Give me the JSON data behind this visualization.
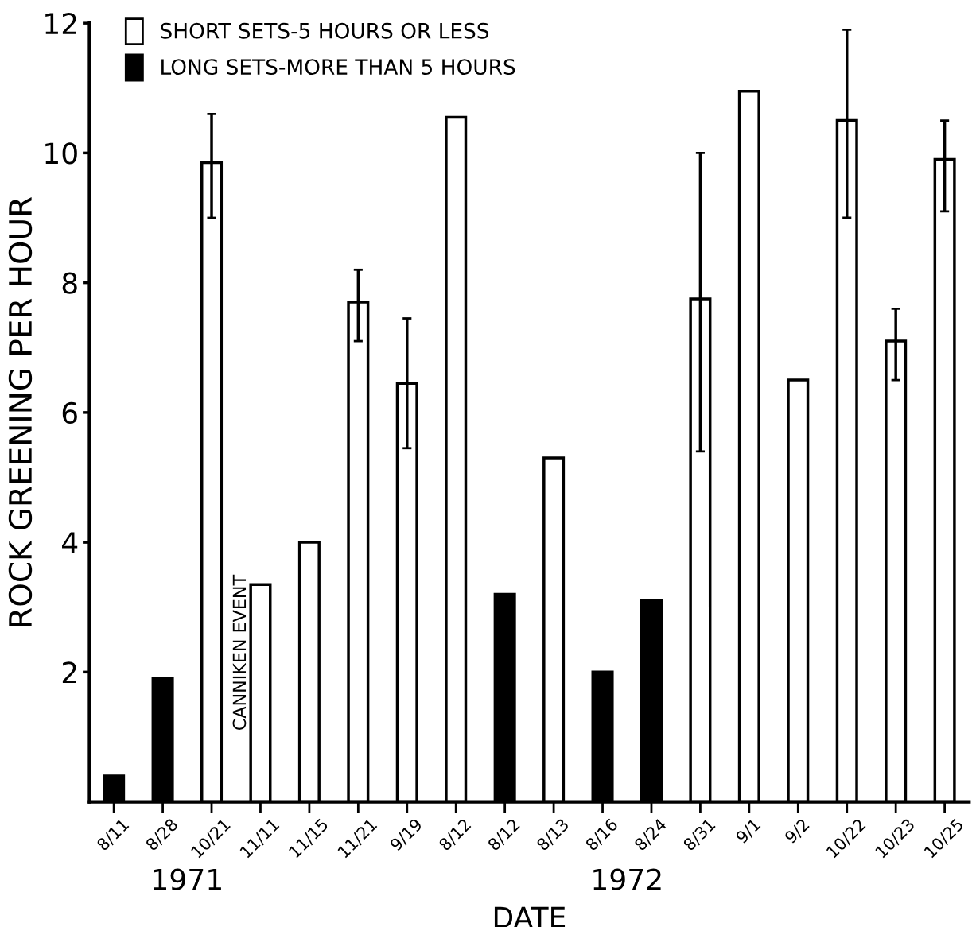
{
  "chart_data": {
    "type": "bar",
    "xlabel": "DATE",
    "ylabel": "ROCK GREENING PER HOUR",
    "categories": [
      "8/11",
      "8/28",
      "10/21",
      "11/11",
      "11/15",
      "11/21",
      "9/19",
      "8/12",
      "8/12",
      "8/13",
      "8/16",
      "8/24",
      "8/31",
      "9/1",
      "9/2",
      "10/22",
      "10/23",
      "10/25"
    ],
    "series": [
      {
        "name": "SHORT SETS-5 HOURS OR LESS",
        "color": "#ffffff",
        "values": [
          null,
          null,
          9.85,
          3.35,
          4.0,
          7.7,
          6.45,
          10.55,
          null,
          5.3,
          null,
          null,
          7.75,
          10.95,
          6.5,
          10.5,
          7.1,
          9.9
        ],
        "errors": [
          null,
          null,
          [
            9.0,
            10.6
          ],
          null,
          null,
          [
            7.1,
            8.2
          ],
          [
            5.45,
            7.45
          ],
          null,
          null,
          null,
          null,
          null,
          [
            5.4,
            10.0
          ],
          null,
          null,
          [
            9.0,
            11.9
          ],
          [
            6.5,
            7.6
          ],
          [
            9.1,
            10.5
          ]
        ]
      },
      {
        "name": "LONG SETS-MORE THAN 5 HOURS",
        "color": "#000000",
        "values": [
          0.4,
          1.9,
          null,
          null,
          null,
          null,
          null,
          null,
          3.2,
          null,
          2.0,
          3.1,
          null,
          null,
          null,
          null,
          null,
          null
        ]
      }
    ],
    "ylim": [
      0,
      12
    ],
    "yticks": [
      2,
      4,
      6,
      8,
      10,
      12
    ],
    "grid": false,
    "legend": "top left",
    "annotations": [
      "CANNIKEN EVENT",
      "1971",
      "1972"
    ]
  }
}
